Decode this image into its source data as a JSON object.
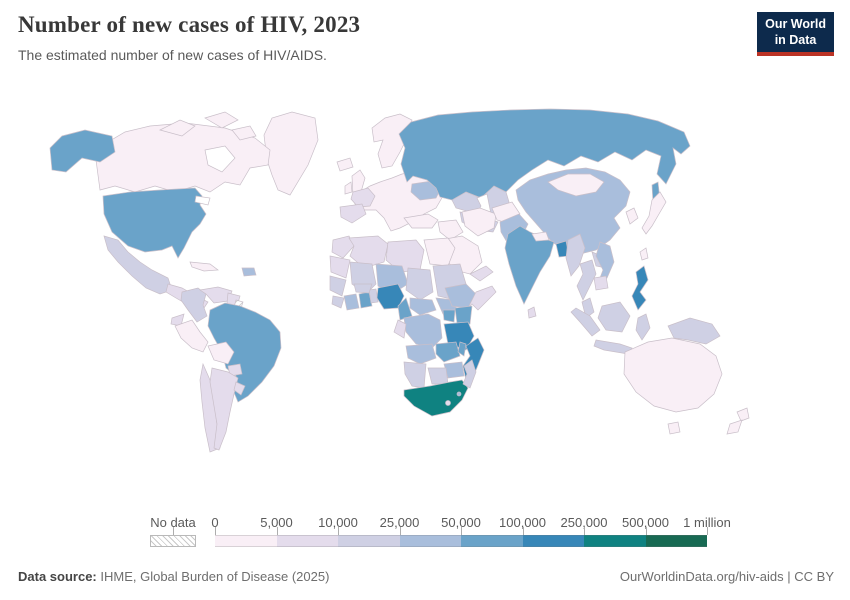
{
  "header": {
    "title": "Number of new cases of HIV, 2023",
    "subtitle": "The estimated number of new cases of HIV/AIDS."
  },
  "logo": {
    "line1": "Our World",
    "line2": "in Data",
    "bg_color": "#0d2a4c",
    "accent_color": "#bb3325"
  },
  "legend": {
    "no_data_label": "No data",
    "tick_labels": [
      "0",
      "5,000",
      "10,000",
      "25,000",
      "50,000",
      "100,000",
      "250,000",
      "500,000",
      "1 million"
    ],
    "bin_colors": [
      "#f9eff6",
      "#e4dcec",
      "#cfd0e4",
      "#a9bedc",
      "#6aa3c9",
      "#3787b8",
      "#0f8281",
      "#186a53"
    ]
  },
  "footer": {
    "source_label": "Data source:",
    "source_text": " IHME, Global Burden of Disease (2025)",
    "credit_text": "OurWorldinData.org/hiv-aids | CC BY"
  },
  "chart_data": {
    "type": "heatmap",
    "subtype": "choropleth-world-map",
    "title": "Number of new cases of HIV, 2023",
    "subtitle": "The estimated number of new cases of HIV/AIDS.",
    "year": 2023,
    "unit": "estimated new HIV/AIDS cases",
    "legend_position": "bottom",
    "bin_edges": [
      "0",
      "5,000",
      "10,000",
      "25,000",
      "50,000",
      "100,000",
      "250,000",
      "500,000",
      "1 million"
    ],
    "bin_labels": [
      "0-5,000",
      "5,000-10,000",
      "10,000-25,000",
      "25,000-50,000",
      "50,000-100,000",
      "100,000-250,000",
      "250,000-500,000",
      "500,000-1 million"
    ],
    "regions": [
      {
        "id": "greenland",
        "name": "Greenland",
        "bin": 0
      },
      {
        "id": "canada",
        "name": "Canada",
        "bin": 0
      },
      {
        "id": "canada-arctic-1",
        "name": "Canada (Arctic islands)",
        "bin": 0
      },
      {
        "id": "canada-arctic-2",
        "name": "Canada (Arctic islands)",
        "bin": 0
      },
      {
        "id": "canada-arctic-3",
        "name": "Canada (Arctic islands)",
        "bin": 0
      },
      {
        "id": "united-states",
        "name": "United States",
        "bin": 4
      },
      {
        "id": "alaska",
        "name": "United States (Alaska)",
        "bin": 4
      },
      {
        "id": "mexico",
        "name": "Mexico",
        "bin": 2
      },
      {
        "id": "central-america",
        "name": "Central America",
        "bin": 1
      },
      {
        "id": "cuba",
        "name": "Cuba",
        "bin": 0
      },
      {
        "id": "hispaniola",
        "name": "Haiti / Dominican Republic",
        "bin": 3
      },
      {
        "id": "colombia",
        "name": "Colombia",
        "bin": 2
      },
      {
        "id": "venezuela",
        "name": "Venezuela",
        "bin": 1
      },
      {
        "id": "guyanas",
        "name": "Guyana / Suriname",
        "bin": 1
      },
      {
        "id": "french-guiana",
        "name": "French Guiana",
        "bin": "no_data"
      },
      {
        "id": "ecuador",
        "name": "Ecuador",
        "bin": 1
      },
      {
        "id": "peru",
        "name": "Peru",
        "bin": 0
      },
      {
        "id": "brazil",
        "name": "Brazil",
        "bin": 4
      },
      {
        "id": "bolivia",
        "name": "Bolivia",
        "bin": 0
      },
      {
        "id": "paraguay",
        "name": "Paraguay",
        "bin": 1
      },
      {
        "id": "chile",
        "name": "Chile",
        "bin": 1
      },
      {
        "id": "argentina",
        "name": "Argentina",
        "bin": 1
      },
      {
        "id": "uruguay",
        "name": "Uruguay",
        "bin": 1
      },
      {
        "id": "iceland",
        "name": "Iceland",
        "bin": 0
      },
      {
        "id": "united-kingdom",
        "name": "United Kingdom",
        "bin": 0
      },
      {
        "id": "ireland",
        "name": "Ireland",
        "bin": 0
      },
      {
        "id": "scandinavia",
        "name": "Norway / Sweden / Finland",
        "bin": 0
      },
      {
        "id": "europe-mainland",
        "name": "Central & Eastern Europe",
        "bin": 0
      },
      {
        "id": "france",
        "name": "France",
        "bin": 1
      },
      {
        "id": "iberia",
        "name": "Spain / Portugal",
        "bin": 1
      },
      {
        "id": "ukraine",
        "name": "Ukraine",
        "bin": 3
      },
      {
        "id": "turkey",
        "name": "Turkey",
        "bin": 0
      },
      {
        "id": "russia",
        "name": "Russia",
        "bin": 4
      },
      {
        "id": "sakhalin",
        "name": "Russia (Sakhalin)",
        "bin": 4
      },
      {
        "id": "kazakhstan",
        "name": "Kazakhstan",
        "bin": 2
      },
      {
        "id": "central-asia",
        "name": "Uzbekistan / Turkmenistan",
        "bin": 2
      },
      {
        "id": "iran",
        "name": "Iran",
        "bin": 0
      },
      {
        "id": "iraq-syria",
        "name": "Iraq / Syria",
        "bin": 0
      },
      {
        "id": "saudi-arabia",
        "name": "Saudi Arabia",
        "bin": 0
      },
      {
        "id": "yemen-oman",
        "name": "Yemen / Oman",
        "bin": 1
      },
      {
        "id": "afghanistan",
        "name": "Afghanistan",
        "bin": 0
      },
      {
        "id": "pakistan",
        "name": "Pakistan",
        "bin": 3
      },
      {
        "id": "morocco",
        "name": "Morocco",
        "bin": 1
      },
      {
        "id": "algeria",
        "name": "Algeria",
        "bin": 1
      },
      {
        "id": "libya",
        "name": "Libya",
        "bin": 1
      },
      {
        "id": "egypt",
        "name": "Egypt",
        "bin": 0
      },
      {
        "id": "mauritania",
        "name": "Mauritania / W. Sahara",
        "bin": 1
      },
      {
        "id": "mali",
        "name": "Mali",
        "bin": 2
      },
      {
        "id": "niger",
        "name": "Niger",
        "bin": 3
      },
      {
        "id": "chad",
        "name": "Chad",
        "bin": 2
      },
      {
        "id": "sudan",
        "name": "Sudan",
        "bin": 2
      },
      {
        "id": "senegal-guinea",
        "name": "Senegal / Guinea",
        "bin": 2
      },
      {
        "id": "sierra-leone-liberia",
        "name": "Sierra Leone / Liberia",
        "bin": 2
      },
      {
        "id": "cote-divoire",
        "name": "Cote d'Ivoire",
        "bin": 3
      },
      {
        "id": "ghana",
        "name": "Ghana",
        "bin": 4
      },
      {
        "id": "togo-benin",
        "name": "Togo / Benin",
        "bin": 2
      },
      {
        "id": "burkina-faso",
        "name": "Burkina Faso",
        "bin": 2
      },
      {
        "id": "nigeria",
        "name": "Nigeria",
        "bin": 5
      },
      {
        "id": "cameroon",
        "name": "Cameroon",
        "bin": 4
      },
      {
        "id": "central-african-republic",
        "name": "Central African Republic",
        "bin": 3
      },
      {
        "id": "south-sudan",
        "name": "South Sudan",
        "bin": 3
      },
      {
        "id": "ethiopia",
        "name": "Ethiopia",
        "bin": 3
      },
      {
        "id": "somalia",
        "name": "Somalia",
        "bin": 1
      },
      {
        "id": "kenya",
        "name": "Kenya",
        "bin": 4
      },
      {
        "id": "uganda",
        "name": "Uganda",
        "bin": 4
      },
      {
        "id": "drc",
        "name": "Democratic Republic of Congo",
        "bin": 3
      },
      {
        "id": "congo-gabon",
        "name": "Congo / Gabon",
        "bin": 1
      },
      {
        "id": "tanzania",
        "name": "Tanzania",
        "bin": 5
      },
      {
        "id": "angola",
        "name": "Angola",
        "bin": 3
      },
      {
        "id": "zambia",
        "name": "Zambia",
        "bin": 4
      },
      {
        "id": "malawi",
        "name": "Malawi",
        "bin": 4
      },
      {
        "id": "mozambique",
        "name": "Mozambique",
        "bin": 5
      },
      {
        "id": "zimbabwe",
        "name": "Zimbabwe",
        "bin": 3
      },
      {
        "id": "botswana",
        "name": "Botswana",
        "bin": 2
      },
      {
        "id": "namibia",
        "name": "Namibia",
        "bin": 2
      },
      {
        "id": "south-africa",
        "name": "South Africa",
        "bin": 6
      },
      {
        "id": "lesotho",
        "name": "Lesotho",
        "bin": 1
      },
      {
        "id": "eswatini",
        "name": "Eswatini",
        "bin": 3
      },
      {
        "id": "madagascar",
        "name": "Madagascar",
        "bin": 2
      },
      {
        "id": "china",
        "name": "China",
        "bin": 3
      },
      {
        "id": "mongolia",
        "name": "Mongolia",
        "bin": 0
      },
      {
        "id": "korea",
        "name": "South Korea",
        "bin": 0
      },
      {
        "id": "japan",
        "name": "Japan",
        "bin": 0
      },
      {
        "id": "india",
        "name": "India",
        "bin": 4
      },
      {
        "id": "nepal",
        "name": "Nepal",
        "bin": 0
      },
      {
        "id": "bangladesh",
        "name": "Bangladesh",
        "bin": 5
      },
      {
        "id": "sri-lanka",
        "name": "Sri Lanka",
        "bin": 1
      },
      {
        "id": "myanmar",
        "name": "Myanmar",
        "bin": 2
      },
      {
        "id": "thailand",
        "name": "Thailand",
        "bin": 2
      },
      {
        "id": "laos",
        "name": "Laos",
        "bin": 2
      },
      {
        "id": "vietnam",
        "name": "Vietnam",
        "bin": 3
      },
      {
        "id": "cambodia",
        "name": "Cambodia",
        "bin": 1
      },
      {
        "id": "malay-peninsula",
        "name": "Malaysia",
        "bin": 2
      },
      {
        "id": "sumatra",
        "name": "Indonesia (Sumatra)",
        "bin": 2
      },
      {
        "id": "java",
        "name": "Indonesia (Java)",
        "bin": 2
      },
      {
        "id": "borneo",
        "name": "Borneo",
        "bin": 2
      },
      {
        "id": "sulawesi",
        "name": "Indonesia (Sulawesi)",
        "bin": 2
      },
      {
        "id": "philippines",
        "name": "Philippines",
        "bin": 5
      },
      {
        "id": "taiwan",
        "name": "Taiwan",
        "bin": 0
      },
      {
        "id": "new-guinea",
        "name": "New Guinea",
        "bin": 2
      },
      {
        "id": "australia",
        "name": "Australia",
        "bin": 0
      },
      {
        "id": "tasmania",
        "name": "Australia (Tasmania)",
        "bin": 0
      },
      {
        "id": "new-zealand-north",
        "name": "New Zealand (North Island)",
        "bin": 0
      },
      {
        "id": "new-zealand-south",
        "name": "New Zealand (South Island)",
        "bin": 0
      }
    ]
  }
}
